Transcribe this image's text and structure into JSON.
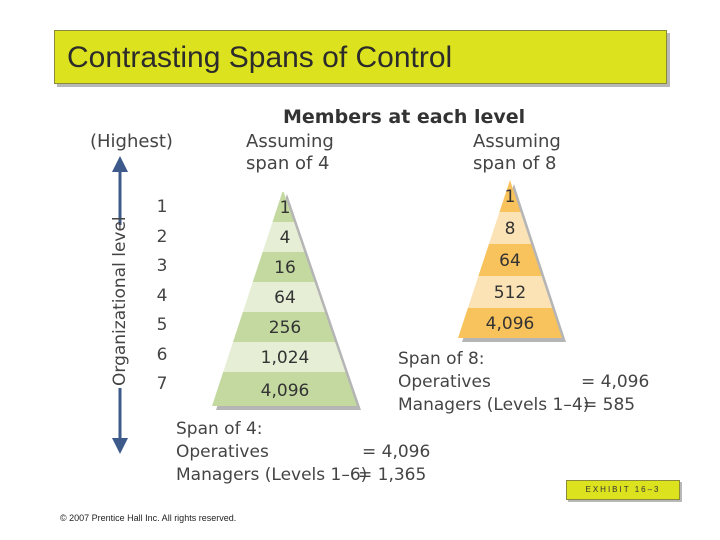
{
  "title": "Contrasting Spans of Control",
  "heading": "Members at each level",
  "highest_label": "(Highest)",
  "axis_label": "Organizational level",
  "span4_header": [
    "Assuming",
    "span of 4"
  ],
  "span8_header": [
    "Assuming",
    "span of 8"
  ],
  "levels": [
    "1",
    "2",
    "3",
    "4",
    "5",
    "6",
    "7"
  ],
  "span4_members": [
    "1",
    "4",
    "16",
    "64",
    "256",
    "1,024",
    "4,096"
  ],
  "span8_members": [
    "1",
    "8",
    "64",
    "512",
    "4,096"
  ],
  "span8_summary": {
    "heading": "Span of 8:",
    "operatives_label": "Operatives",
    "operatives_value": "= 4,096",
    "managers_label": "Managers (Levels 1–4)",
    "managers_value": "= 585"
  },
  "span4_summary": {
    "heading": "Span of 4:",
    "operatives_label": "Operatives",
    "operatives_value": "= 4,096",
    "managers_label": "Managers (Levels 1–6)",
    "managers_value": "= 1,365"
  },
  "exhibit": "EXHIBIT 16–3",
  "copyright": "© 2007 Prentice Hall Inc. All rights reserved.",
  "colors": {
    "title_bg": "#dde21f",
    "green_dark": "#c3d9a0",
    "green_light": "#e6efd6",
    "orange_dark": "#f8c25c",
    "orange_light": "#fbe3b6",
    "axis_blue": "#3d5a8a"
  }
}
